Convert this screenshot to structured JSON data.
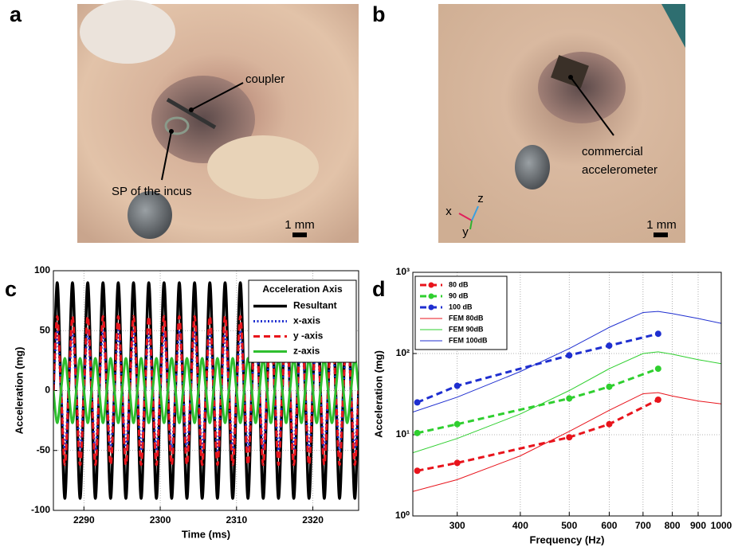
{
  "panel_labels": [
    "a",
    "b",
    "c",
    "d"
  ],
  "panel_a": {
    "coupler": "coupler",
    "incus": "SP of the incus",
    "scale": "1 mm"
  },
  "panel_b": {
    "sensor_1": "commercial",
    "sensor_2": "accelerometer",
    "x": "x",
    "y": "y",
    "z": "z",
    "scale": "1 mm"
  },
  "chart_data": [
    {
      "type": "line",
      "xlabel": "Time (ms)",
      "ylabel": "Acceleration (mg)",
      "xlim": [
        2286,
        2326
      ],
      "ylim": [
        -100,
        100
      ],
      "xticks": [
        2290,
        2300,
        2310,
        2320
      ],
      "yticks": [
        -100,
        -50,
        0,
        50,
        100
      ],
      "grid": true,
      "smooth": true,
      "legend": "upper right",
      "legend_title": "Acceleration Axis",
      "x": [
        2286,
        2286.5,
        2287,
        2287.5,
        2288,
        2288.5,
        2289,
        2289.5,
        2290,
        2290.5,
        2291,
        2291.5,
        2292,
        2292.5,
        2293,
        2293.5,
        2294,
        2294.5,
        2295,
        2295.5,
        2296,
        2296.5,
        2297,
        2297.5,
        2298,
        2298.5,
        2299,
        2299.5,
        2300,
        2300.5,
        2301,
        2301.5,
        2302,
        2302.5,
        2303,
        2303.5,
        2304,
        2304.5,
        2305,
        2305.5,
        2306,
        2306.5,
        2307,
        2307.5,
        2308,
        2308.5,
        2309,
        2309.5,
        2310,
        2310.5,
        2311,
        2311.5,
        2312,
        2312.5,
        2313,
        2313.5,
        2314,
        2314.5,
        2315,
        2315.5,
        2316,
        2316.5,
        2317,
        2317.5,
        2318,
        2318.5,
        2319,
        2319.5,
        2320,
        2320.5,
        2321,
        2321.5,
        2322,
        2322.5,
        2323,
        2323.5,
        2324,
        2324.5,
        2325,
        2325.5,
        2326
      ],
      "series": [
        {
          "name": "Resultant",
          "color": "#000000",
          "linestyle": "solid",
          "linewidth": 3.5,
          "values": [
            0,
            90,
            0,
            -90,
            0,
            90,
            0,
            -90,
            0,
            90,
            0,
            -90,
            0,
            90,
            0,
            -90,
            0,
            90,
            0,
            -90,
            0,
            90,
            0,
            -90,
            0,
            90,
            0,
            -90,
            0,
            90,
            0,
            -90,
            0,
            90,
            0,
            -90,
            0,
            90,
            0,
            -90,
            0,
            90,
            0,
            -90,
            0,
            90,
            0,
            -90,
            0,
            90,
            0,
            -90,
            0,
            90,
            0,
            -90,
            0,
            90,
            0,
            -90,
            0,
            90,
            0,
            -90,
            0,
            90,
            0,
            -90,
            0,
            90,
            0,
            -90,
            0,
            90,
            0,
            -90,
            0,
            90,
            0,
            -90,
            0
          ]
        },
        {
          "name": "x-axis",
          "color": "#1f2fd0",
          "linestyle": "dotted",
          "linewidth": 3,
          "values": [
            0,
            50,
            0,
            -50,
            0,
            50,
            0,
            -50,
            0,
            50,
            0,
            -50,
            0,
            50,
            0,
            -50,
            0,
            50,
            0,
            -50,
            0,
            50,
            0,
            -50,
            0,
            50,
            0,
            -50,
            0,
            50,
            0,
            -50,
            0,
            50,
            0,
            -50,
            0,
            50,
            0,
            -50,
            0,
            50,
            0,
            -50,
            0,
            50,
            0,
            -50,
            0,
            50,
            0,
            -50,
            0,
            50,
            0,
            -50,
            0,
            50,
            0,
            -50,
            0,
            50,
            0,
            -50,
            0,
            50,
            0,
            -50,
            0,
            50,
            0,
            -50,
            0,
            50,
            0,
            -50,
            0,
            50,
            0,
            -50,
            0
          ]
        },
        {
          "name": "y -axis",
          "color": "#e8141c",
          "linestyle": "dashed",
          "linewidth": 3,
          "values": [
            0,
            62,
            0,
            -62,
            0,
            62,
            0,
            -62,
            0,
            62,
            0,
            -62,
            0,
            62,
            0,
            -62,
            0,
            62,
            0,
            -62,
            0,
            62,
            0,
            -62,
            0,
            62,
            0,
            -62,
            0,
            62,
            0,
            -62,
            0,
            62,
            0,
            -62,
            0,
            62,
            0,
            -62,
            0,
            62,
            0,
            -62,
            0,
            62,
            0,
            -62,
            0,
            62,
            0,
            -62,
            0,
            62,
            0,
            -62,
            0,
            62,
            0,
            -62,
            0,
            62,
            0,
            -62,
            0,
            62,
            0,
            -62,
            0,
            62,
            0,
            -62,
            0,
            62,
            0,
            -62,
            0,
            62,
            0,
            -62,
            0
          ]
        },
        {
          "name": "z-axis",
          "color": "#2fbf2f",
          "linestyle": "solid",
          "linewidth": 3,
          "values": [
            0,
            -27,
            0,
            27,
            0,
            -27,
            0,
            27,
            0,
            -27,
            0,
            27,
            0,
            -27,
            0,
            27,
            0,
            -27,
            0,
            27,
            0,
            -27,
            0,
            27,
            0,
            -27,
            0,
            27,
            0,
            -27,
            0,
            27,
            0,
            -27,
            0,
            27,
            0,
            -27,
            0,
            27,
            0,
            -27,
            0,
            27,
            0,
            -27,
            0,
            27,
            0,
            -27,
            0,
            27,
            0,
            -27,
            0,
            27,
            0,
            -27,
            0,
            27,
            0,
            -27,
            0,
            27,
            0,
            -27,
            0,
            27,
            0,
            -27,
            0,
            27,
            0,
            -27,
            0,
            27,
            0,
            -27,
            0,
            27,
            0
          ]
        }
      ]
    },
    {
      "type": "line",
      "xlabel": "Frequency (Hz)",
      "ylabel": "Acceleration (mg)",
      "xlog": true,
      "ylog": true,
      "xlim": [
        245,
        1000
      ],
      "ylim": [
        1,
        1000
      ],
      "xticks": [
        300,
        400,
        500,
        600,
        700,
        800,
        900,
        1000
      ],
      "yticks": [
        {
          "value": 1,
          "label": "10⁰"
        },
        {
          "value": 10,
          "label": "10¹"
        },
        {
          "value": 100,
          "label": "10²"
        },
        {
          "value": 1000,
          "label": "10³"
        }
      ],
      "grid": true,
      "smooth": false,
      "legend": "upper left",
      "series": [
        {
          "name": "80 dB",
          "color": "#e8141c",
          "linestyle": "dashed",
          "linewidth": 3,
          "marker": true,
          "x": [
            250,
            300,
            500,
            600,
            750
          ],
          "values": [
            3.6,
            4.5,
            9.3,
            13.5,
            27
          ]
        },
        {
          "name": "90 dB",
          "color": "#2fcf2f",
          "linestyle": "dashed",
          "linewidth": 3,
          "marker": true,
          "x": [
            250,
            300,
            500,
            600,
            750
          ],
          "values": [
            10.5,
            13.5,
            28,
            39,
            65
          ]
        },
        {
          "name": "100 dB",
          "color": "#1f2fd0",
          "linestyle": "dashed",
          "linewidth": 3,
          "marker": true,
          "x": [
            250,
            300,
            500,
            600,
            750
          ],
          "values": [
            25,
            40,
            95,
            125,
            175
          ]
        },
        {
          "name": "FEM 80dB",
          "color": "#e8141c",
          "linestyle": "solid",
          "linewidth": 1,
          "x": [
            245,
            300,
            400,
            500,
            600,
            700,
            750,
            800,
            900,
            1000
          ],
          "values": [
            2,
            2.8,
            5.5,
            11,
            20,
            32,
            33,
            30,
            26,
            24
          ]
        },
        {
          "name": "FEM 90dB",
          "color": "#2fcf2f",
          "linestyle": "solid",
          "linewidth": 1,
          "x": [
            245,
            300,
            400,
            500,
            600,
            700,
            750,
            800,
            900,
            1000
          ],
          "values": [
            6,
            9,
            18,
            35,
            65,
            100,
            105,
            98,
            84,
            75
          ]
        },
        {
          "name": "FEM 100dB",
          "color": "#1f2fd0",
          "linestyle": "solid",
          "linewidth": 1,
          "x": [
            245,
            300,
            400,
            500,
            600,
            700,
            750,
            800,
            900,
            1000
          ],
          "values": [
            19,
            29,
            60,
            115,
            210,
            320,
            330,
            310,
            270,
            235
          ]
        }
      ]
    }
  ]
}
